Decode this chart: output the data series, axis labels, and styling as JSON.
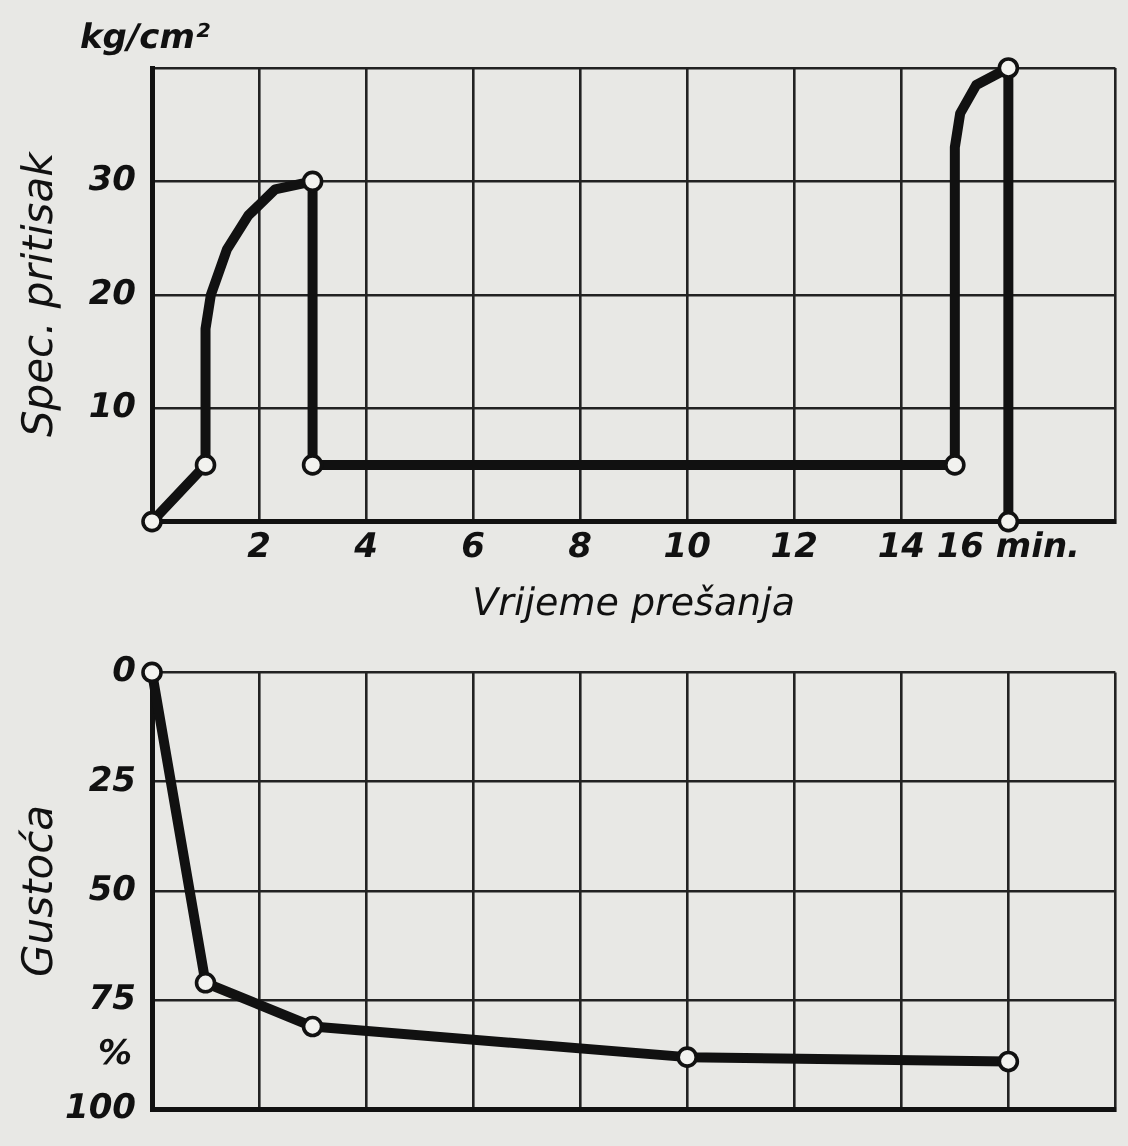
{
  "chart_data": [
    {
      "type": "line",
      "xlabel": "Vrijeme prešanja",
      "ylabel": "Spec. pritisak",
      "annotations": [
        "kg/cm²"
      ],
      "xlim": [
        0,
        18
      ],
      "xticks": [
        {
          "value": 0,
          "label": null
        },
        2,
        4,
        6,
        8,
        10,
        12,
        14,
        {
          "value": 16,
          "label": "16 min."
        },
        {
          "value": 18,
          "label": null
        }
      ],
      "ylim": [
        0,
        40
      ],
      "yticks": [
        {
          "value": 0,
          "label": null
        },
        10,
        20,
        30,
        {
          "value": 40,
          "label": null
        }
      ],
      "grid": true,
      "legend": false,
      "series": [
        {
          "type": "line",
          "color": "#111111",
          "marker": "none",
          "x": [
            0,
            1,
            1,
            1.1,
            1.4,
            1.8,
            2.3,
            3,
            3,
            15,
            15,
            15.1,
            15.4,
            16,
            16
          ],
          "values": [
            0,
            5,
            17,
            20,
            24,
            27,
            29.3,
            30,
            5,
            5,
            33,
            36,
            38.5,
            40,
            0
          ]
        },
        {
          "type": "scatter",
          "color": "#111111",
          "marker": "circle",
          "x": [
            0,
            1,
            3,
            3,
            15,
            16,
            16
          ],
          "values": [
            0,
            5,
            30,
            5,
            5,
            40,
            0
          ]
        }
      ]
    },
    {
      "type": "line",
      "ylabel": "Gustoća",
      "annotations": [
        "%"
      ],
      "tick_labels": "y",
      "xlim": [
        0,
        18
      ],
      "xticks": [
        {
          "value": 2,
          "label": null
        },
        {
          "value": 4,
          "label": null
        },
        {
          "value": 6,
          "label": null
        },
        {
          "value": 8,
          "label": null
        },
        {
          "value": 10,
          "label": null
        },
        {
          "value": 12,
          "label": null
        },
        {
          "value": 14,
          "label": null
        },
        {
          "value": 16,
          "label": null
        },
        {
          "value": 18,
          "label": null
        }
      ],
      "ylim": [
        100,
        0
      ],
      "yticks": [
        0,
        25,
        50,
        75,
        100
      ],
      "grid": true,
      "legend": false,
      "series": [
        {
          "type": "line",
          "color": "#111111",
          "marker": "circle",
          "x": [
            0,
            1,
            3,
            10,
            16
          ],
          "values": [
            0,
            71,
            81,
            88,
            89
          ]
        }
      ]
    }
  ]
}
